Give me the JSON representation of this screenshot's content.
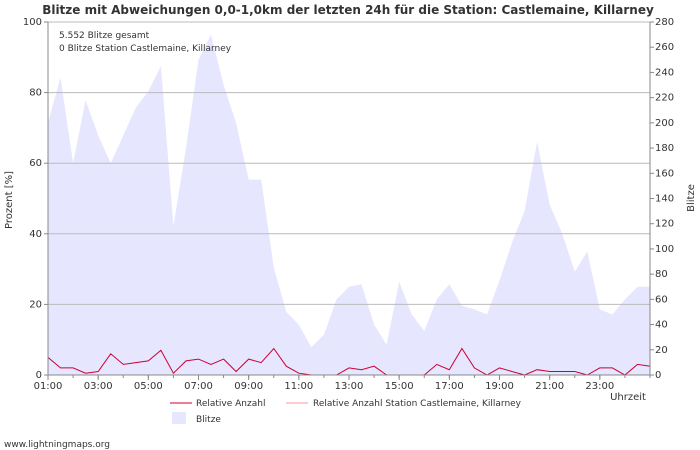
{
  "chart_data": {
    "type": "area",
    "title": "Blitze mit Abweichungen 0,0-1,0km der letzten 24h für die Station: Castlemaine, Killarney",
    "annotations": [
      "5.552 Blitze gesamt",
      "0 Blitze Station Castlemaine, Killarney"
    ],
    "ylabel_left": "Prozent   [%]",
    "ylabel_right": "Blitze",
    "xlabel": "Uhrzeit",
    "ylim_left": [
      0,
      100
    ],
    "ylim_right": [
      0,
      280
    ],
    "x_range_hours": [
      1,
      25
    ],
    "left_ticks": [
      "0",
      "20",
      "40",
      "60",
      "80",
      "100"
    ],
    "right_ticks": [
      "0",
      "20",
      "40",
      "60",
      "80",
      "100",
      "120",
      "140",
      "160",
      "180",
      "200",
      "220",
      "240",
      "260",
      "280"
    ],
    "x_ticks": [
      {
        "hour": 1,
        "label": "01:00"
      },
      {
        "hour": 3,
        "label": "03:00"
      },
      {
        "hour": 5,
        "label": "05:00"
      },
      {
        "hour": 7,
        "label": "07:00"
      },
      {
        "hour": 9,
        "label": "09:00"
      },
      {
        "hour": 11,
        "label": "11:00"
      },
      {
        "hour": 13,
        "label": "13:00"
      },
      {
        "hour": 15,
        "label": "15:00"
      },
      {
        "hour": 17,
        "label": "17:00"
      },
      {
        "hour": 19,
        "label": "19:00"
      },
      {
        "hour": 21,
        "label": "21:00"
      },
      {
        "hour": 23,
        "label": "23:00"
      }
    ],
    "series": [
      {
        "name": "Blitze",
        "axis": "right",
        "color": "#e6e6ff",
        "x": [
          1.0,
          1.5,
          2.0,
          2.5,
          3.0,
          3.5,
          4.0,
          4.5,
          5.0,
          5.5,
          6.0,
          6.5,
          7.0,
          7.5,
          8.0,
          8.5,
          9.0,
          9.5,
          10.0,
          10.5,
          11.0,
          11.5,
          12.0,
          12.5,
          13.0,
          13.5,
          14.0,
          14.5,
          15.0,
          15.5,
          16.0,
          16.5,
          17.0,
          17.5,
          18.0,
          18.5,
          19.0,
          19.5,
          20.0,
          20.5,
          21.0,
          21.5,
          22.0,
          22.5,
          23.0,
          23.5,
          24.0,
          24.5,
          25.0
        ],
        "values": [
          200,
          236,
          168,
          218,
          190,
          168,
          190,
          212,
          225,
          245,
          118,
          180,
          250,
          270,
          230,
          200,
          155,
          155,
          85,
          50,
          40,
          22,
          32,
          60,
          70,
          72,
          40,
          24,
          74,
          48,
          35,
          60,
          72,
          55,
          52,
          48,
          75,
          105,
          130,
          185,
          135,
          112,
          82,
          98,
          52,
          48,
          60,
          70,
          70
        ]
      },
      {
        "name": "Relative Anzahl",
        "axis": "left",
        "color": "#cc0033",
        "x": [
          1.0,
          1.5,
          2.0,
          2.5,
          3.0,
          3.5,
          4.0,
          4.5,
          5.0,
          5.5,
          6.0,
          6.5,
          7.0,
          7.5,
          8.0,
          8.5,
          9.0,
          9.5,
          10.0,
          10.5,
          11.0,
          11.5,
          12.0,
          12.5,
          13.0,
          13.5,
          14.0,
          14.5,
          15.0,
          15.5,
          16.0,
          16.5,
          17.0,
          17.5,
          18.0,
          18.5,
          19.0,
          19.5,
          20.0,
          20.5,
          21.0,
          21.5,
          22.0,
          22.5,
          23.0,
          23.5,
          24.0,
          24.5,
          25.0
        ],
        "values": [
          5,
          2,
          2,
          0.5,
          1,
          6,
          3,
          3.5,
          4,
          7,
          0.5,
          4,
          4.5,
          3,
          4.5,
          1,
          4.5,
          3.5,
          7.5,
          2.5,
          0.5,
          0,
          0,
          0,
          2,
          1.5,
          2.5,
          0,
          0,
          0,
          0,
          3,
          1.5,
          7.5,
          2,
          0,
          2,
          1,
          0,
          1.5,
          1,
          1,
          1,
          0,
          2,
          2,
          0,
          3,
          2.5
        ]
      },
      {
        "name": "Relative Anzahl Station Castlemaine, Killarney",
        "axis": "left",
        "color": "#ff9999",
        "x": [
          1,
          25
        ],
        "values": [
          0,
          0
        ]
      }
    ],
    "legend": [
      "Relative Anzahl",
      "Relative Anzahl Station Castlemaine, Killarney",
      "Blitze"
    ],
    "legend_position": "bottom",
    "grid": true
  },
  "footer": {
    "credit": "www.lightningmaps.org"
  }
}
